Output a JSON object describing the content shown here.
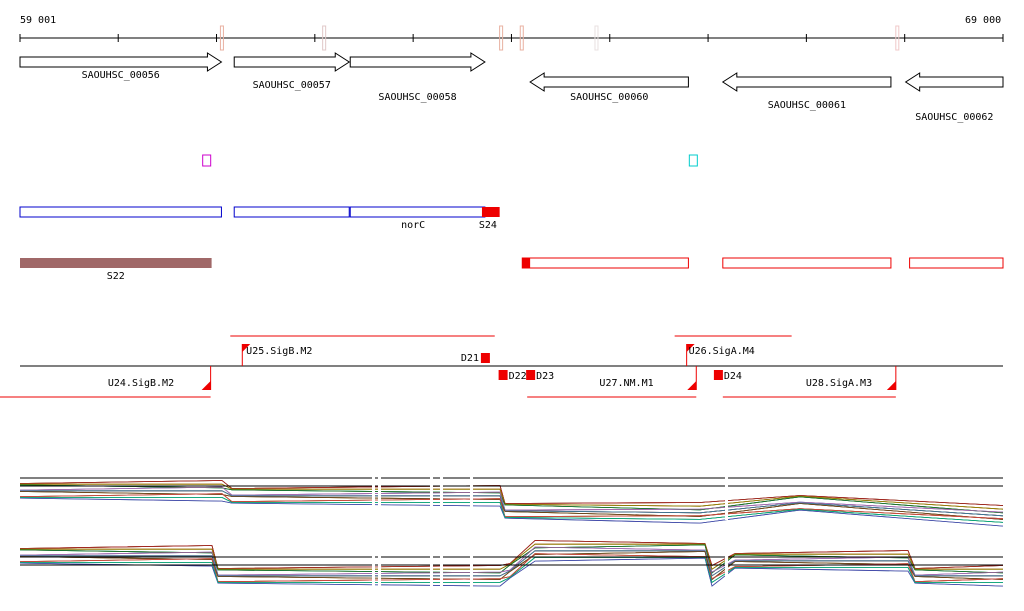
{
  "axis": {
    "start_label": "59 001",
    "end_label": "69 000",
    "start": 59001,
    "end": 69000,
    "tick_step": 1000
  },
  "genes": [
    {
      "id": "SAOUHSC_00056",
      "start": 59001,
      "end": 61050,
      "strand": "+"
    },
    {
      "id": "SAOUHSC_00057",
      "start": 61180,
      "end": 62350,
      "strand": "+"
    },
    {
      "id": "SAOUHSC_00058",
      "start": 62360,
      "end": 63730,
      "strand": "+"
    },
    {
      "id": "SAOUHSC_00060",
      "start": 64190,
      "end": 65800,
      "strand": "-"
    },
    {
      "id": "SAOUHSC_00061",
      "start": 66150,
      "end": 67860,
      "strand": "-"
    },
    {
      "id": "SAOUHSC_00062",
      "start": 68010,
      "end": 69000,
      "strand": "-"
    }
  ],
  "marks_top": [
    {
      "pos": 61060,
      "color": "#e8b0a0"
    },
    {
      "pos": 64870,
      "color": "#e8e0e0"
    },
    {
      "pos": 63900,
      "color": "#e8b0a0"
    },
    {
      "pos": 64110,
      "color": "#e8b0a0"
    },
    {
      "pos": 62100,
      "color": "#e0c8c8"
    },
    {
      "pos": 67930,
      "color": "#f0c8c8"
    }
  ],
  "small_boxes": [
    {
      "pos": 60900,
      "color": "#cc00cc"
    },
    {
      "pos": 65850,
      "color": "#00cccc"
    }
  ],
  "segments_blue": [
    {
      "start": 59001,
      "end": 61050
    },
    {
      "start": 61180,
      "end": 62350
    },
    {
      "start": 62360,
      "end": 63730
    }
  ],
  "segments_blue_labels": [
    {
      "text": "norC",
      "pos": 63000
    },
    {
      "text": "S24",
      "pos": 63760
    }
  ],
  "blue_red_tail": {
    "start": 63700,
    "end": 63880
  },
  "segments_red": [
    {
      "start": 64110,
      "end": 65800
    },
    {
      "start": 66150,
      "end": 67860
    },
    {
      "start": 68050,
      "end": 69000
    }
  ],
  "red_start_block": {
    "start": 64110,
    "end": 64190
  },
  "s22": {
    "label": "S22",
    "start": 59001,
    "end": 60950,
    "color": "#a06868"
  },
  "operons_top": [
    {
      "label": "U25.SigB.M2",
      "start": 61140,
      "end": 63830,
      "labelpos": 61200
    },
    {
      "label": "U26.SigA.M4",
      "start": 65660,
      "end": 66850,
      "labelpos": 65700
    }
  ],
  "operons_bottom": [
    {
      "label": "U24.SigB.M2",
      "start": 59001,
      "end": 60940,
      "labelpos": 60200
    },
    {
      "label": "U27.NM.M1",
      "start": 64160,
      "end": 65880,
      "labelpos": 65200
    },
    {
      "label": "U28.SigA.M3",
      "start": 66150,
      "end": 67910,
      "labelpos": 67300
    }
  ],
  "downstream_markers": [
    {
      "label": "D21",
      "pos": 63730,
      "side": "top"
    },
    {
      "label": "D22",
      "pos": 63910,
      "side": "bottom"
    },
    {
      "label": "D23",
      "pos": 64190,
      "side": "bottom"
    },
    {
      "label": "D24",
      "pos": 66100,
      "side": "bottom"
    }
  ],
  "expression": {
    "panels": 2,
    "line_colors": [
      "#884400",
      "#cc6600",
      "#009900",
      "#4444aa",
      "#aa2222",
      "#888800",
      "#226622",
      "#aa66aa",
      "#4488aa",
      "#664422",
      "#cc4444",
      "#00aa88",
      "#8888cc",
      "#000000"
    ]
  }
}
